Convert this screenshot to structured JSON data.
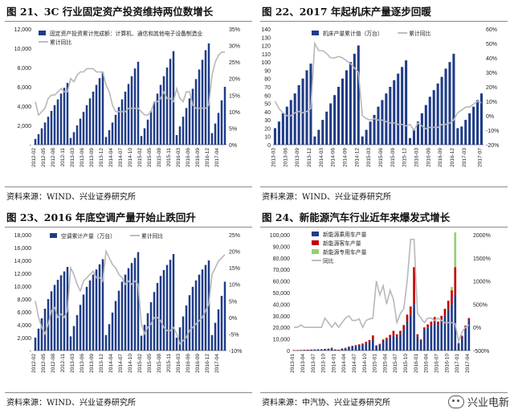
{
  "chart_data": [
    {
      "type": "bar",
      "title": "图 21、3C 行业固定资产投资维持两位数增长",
      "source": "资料来源：WIND、兴业证券研究所",
      "x": [
        "2012-02",
        "2012-03",
        "2012-04",
        "2012-05",
        "2012-06",
        "2012-07",
        "2012-08",
        "2012-09",
        "2012-10",
        "2012-11",
        "2012-12",
        "2013-02",
        "2013-03",
        "2013-04",
        "2013-05",
        "2013-06",
        "2013-07",
        "2013-08",
        "2013-09",
        "2013-10",
        "2013-11",
        "2013-12",
        "2014-02",
        "2014-03",
        "2014-04",
        "2014-05",
        "2014-06",
        "2014-07",
        "2014-08",
        "2014-09",
        "2014-10",
        "2014-11",
        "2014-12",
        "2015-02",
        "2015-03",
        "2015-04",
        "2015-05",
        "2015-06",
        "2015-07",
        "2015-08",
        "2015-09",
        "2015-10",
        "2015-11",
        "2015-12",
        "2016-02",
        "2016-03",
        "2016-04",
        "2016-05",
        "2016-06",
        "2016-07",
        "2016-08",
        "2016-09",
        "2016-10",
        "2016-11",
        "2016-12",
        "2017-02",
        "2017-03",
        "2017-04",
        "2017-05",
        "2017-06"
      ],
      "xticks": [
        "2012-02",
        "2012-05",
        "2012-08",
        "2012-11",
        "2013-03",
        "2013-06",
        "2013-09",
        "2013-12",
        "2014-04",
        "2014-07",
        "2014-10",
        "2015-02",
        "2015-05",
        "2015-08",
        "2015-11",
        "2016-03",
        "2016-06",
        "2016-09",
        "2016-12",
        "2017-04"
      ],
      "yticks_left": [
        "-",
        "2,000",
        "4,000",
        "6,000",
        "8,000",
        "10,000",
        "12,000"
      ],
      "yticks_right": [
        "0%",
        "5%",
        "10%",
        "15%",
        "20%",
        "25%",
        "30%",
        "35%"
      ],
      "ylim_left": [
        0,
        12000
      ],
      "ylim_right": [
        0,
        35
      ],
      "legend_position": "top-left",
      "series": [
        {
          "name": "固定资产投资累计完成额：计算机、通信和其他电子设备制造业",
          "kind": "bar",
          "axis": "left",
          "color": "#1f3c88",
          "values": [
            600,
            1100,
            1700,
            2300,
            2900,
            3500,
            4100,
            4700,
            5300,
            5900,
            6400,
            700,
            1300,
            2000,
            2700,
            3400,
            4100,
            4800,
            5500,
            6200,
            6900,
            7500,
            800,
            1500,
            2300,
            3100,
            3900,
            4700,
            5500,
            6300,
            7100,
            7900,
            8600,
            900,
            1700,
            2600,
            3500,
            4400,
            5300,
            6200,
            7100,
            8000,
            8900,
            9700,
            1000,
            1900,
            2900,
            3800,
            4800,
            5800,
            6800,
            7800,
            8800,
            9800,
            10500,
            1200,
            2200,
            3300,
            4600,
            6000
          ]
        },
        {
          "name": "累计同比",
          "kind": "line",
          "axis": "right",
          "color": "#b8b8b8",
          "values": [
            13,
            9,
            10,
            11,
            14,
            15,
            15,
            16,
            17,
            16,
            16,
            20,
            19,
            21,
            22,
            22,
            23,
            23,
            23,
            22,
            22,
            22,
            18,
            16,
            12,
            10,
            10,
            10,
            10,
            11,
            11,
            11,
            11,
            10,
            9,
            9,
            10,
            13,
            13,
            14,
            16,
            14,
            14,
            13,
            17,
            14,
            13,
            16,
            16,
            12,
            11,
            11,
            11,
            11,
            12,
            21,
            25,
            27,
            28,
            28
          ]
        }
      ]
    },
    {
      "type": "bar",
      "title": "图 22、2017 年起机床产量逐步回暖",
      "source": "资料来源：WIND、兴业证券研究所",
      "x": [
        "2013-03",
        "2013-04",
        "2013-05",
        "2013-06",
        "2013-07",
        "2013-08",
        "2013-09",
        "2013-10",
        "2013-11",
        "2013-12",
        "2014-01",
        "2014-02",
        "2014-03",
        "2014-04",
        "2014-05",
        "2014-06",
        "2014-07",
        "2014-08",
        "2014-09",
        "2014-10",
        "2014-11",
        "2014-12",
        "2015-01",
        "2015-02",
        "2015-03",
        "2015-04",
        "2015-05",
        "2015-06",
        "2015-07",
        "2015-08",
        "2015-09",
        "2015-10",
        "2015-11",
        "2015-12",
        "2016-01",
        "2016-02",
        "2016-03",
        "2016-04",
        "2016-05",
        "2016-06",
        "2016-07",
        "2016-08",
        "2016-09",
        "2016-10",
        "2016-11",
        "2016-12",
        "2017-01",
        "2017-02",
        "2017-03",
        "2017-04",
        "2017-05",
        "2017-06",
        "2017-07"
      ],
      "xticks": [
        "2013-03",
        "2013-06",
        "2013-09",
        "2013-12",
        "2014-03",
        "2014-06",
        "2014-09",
        "2014-12",
        "2015-03",
        "2015-06",
        "2015-09",
        "2015-12",
        "2016-03",
        "2016-06",
        "2016-09",
        "2016-12",
        "2017-03",
        "2017-07"
      ],
      "yticks_left": [
        "0",
        "10",
        "20",
        "30",
        "40",
        "50",
        "60",
        "70",
        "80",
        "90",
        "100",
        "110",
        "120",
        "130",
        "140"
      ],
      "yticks_right": [
        "-20%",
        "-10%",
        "0%",
        "10%",
        "20%",
        "30%",
        "40%",
        "50%",
        "60%"
      ],
      "ylim_left": [
        0,
        140
      ],
      "ylim_right": [
        -20,
        60
      ],
      "legend_position": "top-left",
      "series": [
        {
          "name": "机床产量累计值（万台）",
          "kind": "bar",
          "axis": "left",
          "color": "#1f3c88",
          "values": [
            20,
            28,
            38,
            46,
            54,
            62,
            72,
            80,
            90,
            98,
            10,
            18,
            30,
            40,
            50,
            60,
            70,
            80,
            90,
            100,
            110,
            120,
            10,
            18,
            28,
            36,
            46,
            54,
            62,
            70,
            78,
            86,
            94,
            102,
            8,
            18,
            28,
            38,
            48,
            58,
            66,
            74,
            82,
            92,
            100,
            110,
            20,
            22,
            30,
            38,
            46,
            54,
            62
          ]
        },
        {
          "name": "累计同比",
          "kind": "line",
          "axis": "right",
          "color": "#b8b8b8",
          "values": [
            10,
            5,
            2,
            0,
            0,
            2,
            3,
            2,
            3,
            5,
            50,
            45,
            45,
            43,
            40,
            40,
            41,
            40,
            38,
            36,
            33,
            30,
            0,
            -2,
            -3,
            -2,
            -3,
            -3,
            -4,
            -5,
            -5,
            -6,
            -6,
            -7,
            -6,
            -10,
            -5,
            -7,
            -9,
            -8,
            -8,
            -8,
            -6,
            -6,
            -5,
            -3,
            2,
            4,
            6,
            6,
            8,
            10,
            9
          ]
        }
      ]
    },
    {
      "type": "bar",
      "title": "图 23、2016 年底空调产量开始止跌回升",
      "source": "资料来源：WIND、兴业证券研究所",
      "x": [
        "2012-02",
        "2012-03",
        "2012-04",
        "2012-05",
        "2012-06",
        "2012-07",
        "2012-08",
        "2012-09",
        "2012-10",
        "2012-11",
        "2012-12",
        "2013-02",
        "2013-03",
        "2013-04",
        "2013-05",
        "2013-06",
        "2013-07",
        "2013-08",
        "2013-09",
        "2013-10",
        "2013-11",
        "2013-12",
        "2014-02",
        "2014-03",
        "2014-04",
        "2014-05",
        "2014-06",
        "2014-07",
        "2014-08",
        "2014-09",
        "2014-10",
        "2014-11",
        "2014-12",
        "2015-02",
        "2015-03",
        "2015-04",
        "2015-05",
        "2015-06",
        "2015-07",
        "2015-08",
        "2015-09",
        "2015-10",
        "2015-11",
        "2015-12",
        "2016-02",
        "2016-03",
        "2016-04",
        "2016-05",
        "2016-06",
        "2016-07",
        "2016-08",
        "2016-09",
        "2016-10",
        "2016-11",
        "2016-12",
        "2017-02",
        "2017-03",
        "2017-04",
        "2017-05",
        "2017-06"
      ],
      "xticks": [
        "2012-02",
        "2012-05",
        "2012-08",
        "2012-11",
        "2013-03",
        "2013-06",
        "2013-09",
        "2013-12",
        "2014-04",
        "2014-07",
        "2014-10",
        "2015-02",
        "2015-05",
        "2015-08",
        "2015-11",
        "2016-03",
        "2016-06",
        "2016-09",
        "2016-12",
        "2017-04"
      ],
      "yticks_left": [
        "-",
        "2,000",
        "4,000",
        "6,000",
        "8,000",
        "10,000",
        "12,000",
        "14,000",
        "16,000",
        "18,000"
      ],
      "yticks_right": [
        "-10%",
        "-5%",
        "0%",
        "5%",
        "10%",
        "15%",
        "20%",
        "25%"
      ],
      "ylim_left": [
        0,
        18000
      ],
      "ylim_right": [
        -10,
        25
      ],
      "legend_position": "top",
      "series": [
        {
          "name": "空调累计产量（万台）",
          "kind": "bar",
          "axis": "left",
          "color": "#1f3c88",
          "values": [
            2000,
            3400,
            5000,
            6500,
            8000,
            9200,
            10200,
            11000,
            11700,
            12300,
            13000,
            2200,
            3800,
            5500,
            7100,
            8700,
            9900,
            10900,
            11800,
            12600,
            13400,
            14200,
            2400,
            4100,
            5900,
            7700,
            9300,
            10700,
            11800,
            12800,
            13600,
            14400,
            15300,
            2300,
            4000,
            5800,
            7500,
            9100,
            10500,
            11600,
            12500,
            13300,
            14100,
            15000,
            2000,
            3600,
            5300,
            7000,
            8600,
            9900,
            10900,
            11800,
            12600,
            13300,
            14000,
            2400,
            4300,
            6400,
            8500,
            10700
          ]
        },
        {
          "name": "累计同比",
          "kind": "line",
          "axis": "right",
          "color": "#b8b8b8",
          "values": [
            5,
            0,
            -3,
            -5,
            -2,
            2,
            3,
            0,
            1,
            0,
            2,
            15,
            13,
            10,
            8,
            11,
            12,
            13,
            14,
            12,
            12,
            11,
            20,
            18,
            16,
            15,
            13,
            12,
            10,
            11,
            10,
            11,
            10,
            -2,
            -5,
            -3,
            -2,
            0,
            0,
            -1,
            -3,
            -4,
            -4,
            -3,
            -5,
            -8,
            -7,
            -6,
            -4,
            -3,
            -2,
            -1,
            0,
            2,
            4,
            13,
            15,
            17,
            18,
            19
          ]
        }
      ]
    },
    {
      "type": "bar",
      "stacked": true,
      "title": "图 24、新能源汽车行业近年来爆发式增长",
      "source": "资料来源：中汽协、兴业证券研究所",
      "x": [
        "2013-01",
        "2013-02",
        "2013-03",
        "2013-04",
        "2013-05",
        "2013-06",
        "2013-07",
        "2013-08",
        "2013-09",
        "2013-10",
        "2013-11",
        "2013-12",
        "2014-01",
        "2014-02",
        "2014-03",
        "2014-04",
        "2014-05",
        "2014-06",
        "2014-07",
        "2014-08",
        "2014-09",
        "2014-10",
        "2014-11",
        "2014-12",
        "2015-01",
        "2015-02",
        "2015-03",
        "2015-04",
        "2015-05",
        "2015-06",
        "2015-07",
        "2015-08",
        "2015-09",
        "2015-10",
        "2015-11",
        "2015-12",
        "2016-01",
        "2016-02",
        "2016-03",
        "2016-04",
        "2016-05",
        "2016-06",
        "2016-07",
        "2016-08",
        "2016-09",
        "2016-10",
        "2016-11",
        "2016-12",
        "2017-01",
        "2017-02",
        "2017-03",
        "2017-04"
      ],
      "xticks": [
        "2013-01",
        "2013-04",
        "2013-07",
        "2013-10",
        "2014-01",
        "2014-04",
        "2014-07",
        "2014-10",
        "2015-01",
        "2015-04",
        "2015-07",
        "2015-10",
        "2016-01",
        "2016-04",
        "2016-07",
        "2016-10",
        "2017-01",
        "2017-04"
      ],
      "yticks_left": [
        "0",
        "10,000",
        "20,000",
        "30,000",
        "40,000",
        "50,000",
        "60,000",
        "70,000",
        "80,000",
        "90,000",
        "100,000"
      ],
      "yticks_right": [
        "-500%",
        "0%",
        "500%",
        "1000%",
        "1500%",
        "2000%"
      ],
      "ylim_left": [
        0,
        100000
      ],
      "ylim_right": [
        -500,
        2000
      ],
      "legend_position": "top-left",
      "series": [
        {
          "name": "新能源乘用车产量",
          "kind": "bar",
          "axis": "left",
          "color": "#1f3c88",
          "values": [
            300,
            200,
            400,
            500,
            600,
            700,
            800,
            900,
            1000,
            1200,
            1400,
            2000,
            800,
            600,
            1500,
            2000,
            3000,
            3500,
            4000,
            4500,
            5000,
            6000,
            7000,
            9000,
            4000,
            5000,
            8000,
            9000,
            11000,
            13000,
            12000,
            14000,
            18000,
            25000,
            30000,
            40000,
            12000,
            8000,
            18000,
            20000,
            22000,
            24000,
            22000,
            26000,
            30000,
            35000,
            40000,
            48000,
            6000,
            12000,
            20000,
            26000
          ]
        },
        {
          "name": "新能源客车产量",
          "kind": "bar",
          "axis": "left",
          "color": "#c00000",
          "values": [
            50,
            50,
            60,
            80,
            80,
            100,
            100,
            120,
            120,
            150,
            200,
            400,
            100,
            100,
            200,
            300,
            400,
            500,
            600,
            800,
            1000,
            1500,
            2000,
            4000,
            500,
            800,
            1500,
            2000,
            2500,
            4000,
            2000,
            3000,
            4000,
            6000,
            8000,
            32000,
            2000,
            1500,
            2000,
            2500,
            3000,
            5000,
            3000,
            4000,
            6000,
            8000,
            12000,
            24000,
            500,
            800,
            1500,
            2000
          ]
        },
        {
          "name": "新能源专用车产量",
          "kind": "bar",
          "axis": "left",
          "color": "#8fd16f",
          "values": [
            0,
            0,
            0,
            0,
            0,
            0,
            0,
            0,
            0,
            0,
            0,
            0,
            0,
            0,
            0,
            0,
            0,
            0,
            0,
            0,
            0,
            0,
            0,
            0,
            0,
            0,
            0,
            0,
            0,
            0,
            0,
            0,
            0,
            0,
            0,
            0,
            0,
            0,
            0,
            0,
            0,
            0,
            0,
            0,
            0,
            0,
            3000,
            30000,
            0,
            0,
            0,
            0
          ]
        },
        {
          "name": "同比",
          "kind": "line",
          "axis": "right",
          "color": "#b8b8b8",
          "values": [
            0,
            0,
            50,
            0,
            0,
            0,
            0,
            0,
            0,
            200,
            100,
            0,
            100,
            0,
            100,
            200,
            250,
            150,
            150,
            180,
            0,
            150,
            180,
            200,
            1000,
            700,
            900,
            500,
            800,
            600,
            100,
            300,
            400,
            1000,
            1900,
            1900,
            300,
            200,
            100,
            200,
            200,
            150,
            200,
            150,
            100,
            100,
            100,
            80,
            -300,
            -100,
            0,
            50
          ]
        }
      ]
    }
  ],
  "watermark": {
    "text": "兴业电新",
    "icon": "wechat-icon"
  }
}
